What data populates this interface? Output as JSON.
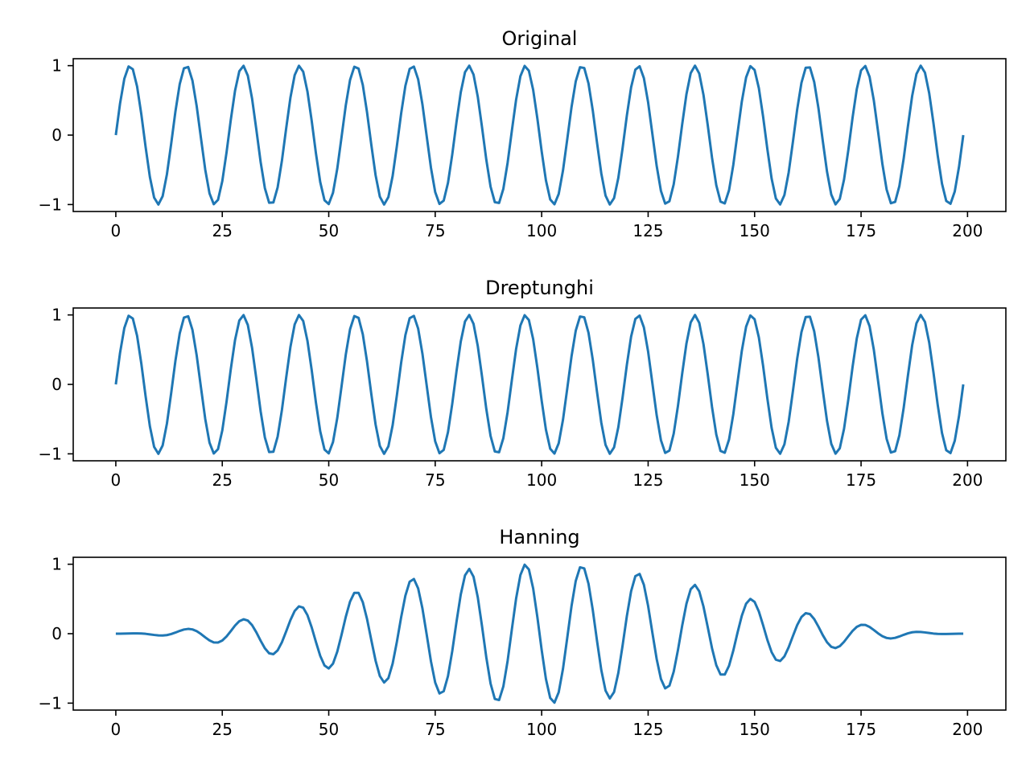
{
  "colors": {
    "line": "#1f77b4",
    "axes": "#000000",
    "background": "#ffffff"
  },
  "chart_data": [
    {
      "type": "line",
      "title": "Original",
      "xlabel": "",
      "ylabel": "",
      "xlim": [
        -10,
        209
      ],
      "ylim": [
        -1.1,
        1.1
      ],
      "xticks": [
        0,
        25,
        50,
        75,
        100,
        125,
        150,
        175,
        200
      ],
      "xtick_labels": [
        "0",
        "25",
        "50",
        "75",
        "100",
        "125",
        "150",
        "175",
        "200"
      ],
      "yticks": [
        -1,
        0,
        1
      ],
      "ytick_labels": [
        "−1",
        "0",
        "1"
      ],
      "grid": false,
      "series": [
        {
          "x_start": 0,
          "x_end": 199,
          "n": 200,
          "formula": "sin(2*pi*15*x/199)",
          "window": "rectangular"
        }
      ]
    },
    {
      "type": "line",
      "title": "Dreptunghi",
      "xlabel": "",
      "ylabel": "",
      "xlim": [
        -10,
        209
      ],
      "ylim": [
        -1.1,
        1.1
      ],
      "xticks": [
        0,
        25,
        50,
        75,
        100,
        125,
        150,
        175,
        200
      ],
      "xtick_labels": [
        "0",
        "25",
        "50",
        "75",
        "100",
        "125",
        "150",
        "175",
        "200"
      ],
      "yticks": [
        -1,
        0,
        1
      ],
      "ytick_labels": [
        "−1",
        "0",
        "1"
      ],
      "grid": false,
      "series": [
        {
          "x_start": 0,
          "x_end": 199,
          "n": 200,
          "formula": "sin(2*pi*15*x/199)",
          "window": "rectangular"
        }
      ]
    },
    {
      "type": "line",
      "title": "Hanning",
      "xlabel": "",
      "ylabel": "",
      "xlim": [
        -10,
        209
      ],
      "ylim": [
        -1.1,
        1.1
      ],
      "xticks": [
        0,
        25,
        50,
        75,
        100,
        125,
        150,
        175,
        200
      ],
      "xtick_labels": [
        "0",
        "25",
        "50",
        "75",
        "100",
        "125",
        "150",
        "175",
        "200"
      ],
      "yticks": [
        -1,
        0,
        1
      ],
      "ytick_labels": [
        "−1",
        "0",
        "1"
      ],
      "grid": false,
      "series": [
        {
          "x_start": 0,
          "x_end": 199,
          "n": 200,
          "formula": "sin(2*pi*15*x/199)",
          "window": "hanning"
        }
      ]
    }
  ]
}
